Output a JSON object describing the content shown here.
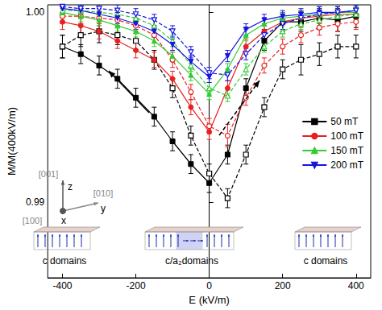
{
  "chart_data": {
    "type": "line",
    "x_label": "E (kV/m)",
    "y_label": "M/M(400kV/m)",
    "xlim": [
      -440,
      440
    ],
    "xticks": [
      -400,
      -200,
      0,
      200,
      400
    ],
    "ylim": [
      0.986,
      1.0004
    ],
    "yticks": [
      0.99,
      {
        "value": 1,
        "label": "1.00"
      }
    ],
    "legend": "right",
    "x": [
      -400,
      -350,
      -300,
      -250,
      -200,
      -150,
      -100,
      -50,
      0,
      50,
      100,
      150,
      200,
      250,
      300,
      350,
      400
    ],
    "series": [
      {
        "name": "50 mT",
        "color": "#000000",
        "marker": "square",
        "line_style": "solid",
        "values": [
          0.9982,
          0.9978,
          0.9972,
          0.9965,
          0.9955,
          0.9945,
          0.9932,
          0.992,
          0.991,
          0.9925,
          0.996,
          0.9985,
          0.9995,
          0.9995,
          0.9997,
          0.9996,
          0.9998
        ],
        "errors": [
          0.0006,
          0.0005,
          0.0005,
          0.0005,
          0.0005,
          0.0005,
          0.0005,
          0.0005,
          0.0005,
          0.0005,
          0.0005,
          0.0005,
          0.0005,
          0.0005,
          0.0006,
          0.0006,
          0.0006
        ]
      },
      {
        "name": "50 mT",
        "color": "#000000",
        "marker": "open-square",
        "line_style": "dashed",
        "values": [
          0.9982,
          0.9988,
          0.999,
          0.9988,
          0.9985,
          0.9975,
          0.996,
          0.9935,
          0.9915,
          0.9902,
          0.9925,
          0.995,
          0.997,
          0.9975,
          0.9978,
          0.9982,
          0.9982
        ],
        "errors": [
          0.0006,
          0.0006,
          0.0006,
          0.0005,
          0.0005,
          0.0005,
          0.0005,
          0.0005,
          0.0005,
          0.0005,
          0.0005,
          0.0005,
          0.0005,
          0.0008,
          0.0006,
          0.0006,
          0.0006
        ]
      },
      {
        "name": "100 mT",
        "color": "#e8201e",
        "marker": "circle",
        "line_style": "solid",
        "values": [
          0.9995,
          0.9993,
          0.999,
          0.9985,
          0.998,
          0.9975,
          0.9965,
          0.995,
          0.9937,
          0.996,
          0.9982,
          0.999,
          0.9995,
          0.9997,
          0.9998,
          0.9999,
          0.9999
        ],
        "errors": [
          0.0004,
          0.0004,
          0.0004,
          0.0004,
          0.0004,
          0.0004,
          0.0004,
          0.0004,
          0.0004,
          0.0004,
          0.0004,
          0.0004,
          0.0004,
          0.0004,
          0.0004,
          0.0004,
          0.0004
        ]
      },
      {
        "name": "100 mT",
        "color": "#e8201e",
        "marker": "open-circle",
        "line_style": "dashed",
        "values": [
          0.9998,
          0.9998,
          0.9997,
          0.9996,
          0.9993,
          0.9988,
          0.9975,
          0.9958,
          0.994,
          0.9935,
          0.9955,
          0.9972,
          0.9982,
          0.9988,
          0.9992,
          0.9994,
          0.9995
        ],
        "errors": [
          0.0004,
          0.0004,
          0.0004,
          0.0004,
          0.0004,
          0.0004,
          0.0004,
          0.0004,
          0.0004,
          0.0006,
          0.0004,
          0.0004,
          0.0004,
          0.0004,
          0.0004,
          0.0004,
          0.0004
        ]
      },
      {
        "name": "150 mT",
        "color": "#33cc33",
        "marker": "triangle-up",
        "line_style": "solid",
        "values": [
          1.0,
          0.9998,
          0.9996,
          0.9993,
          0.999,
          0.9985,
          0.9977,
          0.9967,
          0.9957,
          0.997,
          0.9988,
          0.9994,
          0.9997,
          0.9998,
          0.9999,
          1.0,
          1.0
        ],
        "errors": [
          0.0003,
          0.0003,
          0.0003,
          0.0003,
          0.0003,
          0.0003,
          0.0003,
          0.0003,
          0.0003,
          0.0003,
          0.0003,
          0.0003,
          0.0003,
          0.0003,
          0.0003,
          0.0003,
          0.0003
        ]
      },
      {
        "name": "150 mT",
        "color": "#33cc33",
        "marker": "open-triangle-up",
        "line_style": "dashed",
        "values": [
          1.0001,
          1.0001,
          1.0,
          0.9999,
          0.9997,
          0.9993,
          0.9985,
          0.9972,
          0.996,
          0.9956,
          0.997,
          0.9982,
          0.999,
          0.9994,
          0.9996,
          0.9998,
          0.9999
        ],
        "errors": [
          0.0003,
          0.0003,
          0.0003,
          0.0003,
          0.0003,
          0.0003,
          0.0003,
          0.0003,
          0.0003,
          0.0003,
          0.0003,
          0.0003,
          0.0003,
          0.0003,
          0.0003,
          0.0003,
          0.0003
        ]
      },
      {
        "name": "200 mT",
        "color": "#1515e0",
        "marker": "triangle-down",
        "line_style": "solid",
        "values": [
          1.0002,
          1.0001,
          0.9999,
          0.9997,
          0.9994,
          0.999,
          0.9983,
          0.9974,
          0.9966,
          0.9977,
          0.9991,
          0.9996,
          0.9998,
          0.9999,
          1.0,
          1.0,
          1.0001
        ],
        "errors": [
          0.0003,
          0.0003,
          0.0003,
          0.0003,
          0.0003,
          0.0003,
          0.0003,
          0.0003,
          0.0003,
          0.0003,
          0.0003,
          0.0003,
          0.0003,
          0.0003,
          0.0003,
          0.0003,
          0.0003
        ]
      },
      {
        "name": "200 mT",
        "color": "#1515e0",
        "marker": "open-triangle-down",
        "line_style": "dashed",
        "values": [
          1.0003,
          1.0002,
          1.0002,
          1.0001,
          0.9999,
          0.9996,
          0.999,
          0.9979,
          0.9968,
          0.9967,
          0.9978,
          0.9988,
          0.9994,
          0.9997,
          0.9999,
          1.0,
          1.0001
        ],
        "errors": [
          0.0003,
          0.0003,
          0.0003,
          0.0003,
          0.0003,
          0.0003,
          0.0003,
          0.0003,
          0.0003,
          0.0003,
          0.0003,
          0.0003,
          0.0003,
          0.0003,
          0.0003,
          0.0003,
          0.0003
        ]
      }
    ],
    "inset_labels": [
      "c domains",
      "c/a₂domains",
      "c domains"
    ],
    "axes_labels": {
      "z_dir": "[001]",
      "z": "z",
      "y_dir": "[010]",
      "y": "y",
      "x_dir": "[100]",
      "x": "x"
    }
  }
}
